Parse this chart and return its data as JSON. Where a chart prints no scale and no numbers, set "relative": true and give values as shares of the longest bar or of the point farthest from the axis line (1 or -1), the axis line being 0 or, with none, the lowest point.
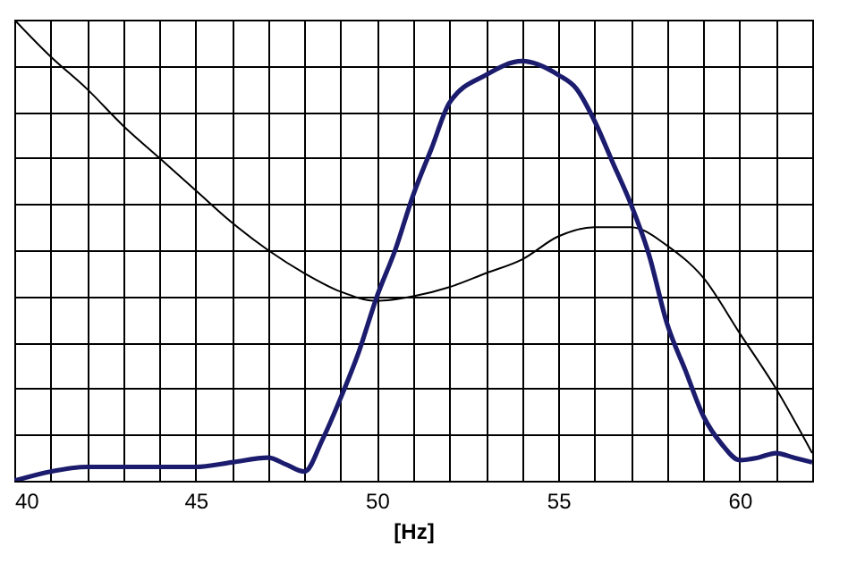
{
  "chart_data": {
    "type": "line",
    "xlabel": "[Hz]",
    "relative": true,
    "grid": true,
    "tick_labels": "x",
    "xlim": [
      40,
      62
    ],
    "xticks": [
      40,
      {
        "value": 41,
        "label": null
      },
      {
        "value": 42,
        "label": null
      },
      {
        "value": 43,
        "label": null
      },
      {
        "value": 44,
        "label": null
      },
      45,
      {
        "value": 46,
        "label": null
      },
      {
        "value": 47,
        "label": null
      },
      {
        "value": 48,
        "label": null
      },
      {
        "value": 49,
        "label": null
      },
      50,
      {
        "value": 51,
        "label": null
      },
      {
        "value": 52,
        "label": null
      },
      {
        "value": 53,
        "label": null
      },
      {
        "value": 54,
        "label": null
      },
      55,
      {
        "value": 56,
        "label": null
      },
      {
        "value": 57,
        "label": null
      },
      {
        "value": 58,
        "label": null
      },
      {
        "value": 59,
        "label": null
      },
      60,
      {
        "value": 61,
        "label": null
      },
      {
        "value": 62,
        "label": null
      }
    ],
    "series": [
      {
        "color": "#000000",
        "x": [
          40,
          41,
          42,
          43,
          44,
          45,
          46,
          47,
          48,
          49,
          50,
          51,
          52,
          53,
          54,
          55,
          56,
          57,
          58,
          59,
          60,
          61,
          62
        ],
        "values": [
          1.0,
          0.92,
          0.85,
          0.77,
          0.7,
          0.63,
          0.56,
          0.5,
          0.45,
          0.41,
          0.39,
          0.4,
          0.42,
          0.45,
          0.48,
          0.53,
          0.55,
          0.55,
          0.51,
          0.44,
          0.32,
          0.2,
          0.06
        ]
      },
      {
        "color": "#1c1c6e",
        "x": [
          40,
          41,
          42,
          43,
          44,
          45,
          46,
          47,
          47.5,
          48,
          48.5,
          49,
          49.5,
          50,
          50.5,
          51,
          51.5,
          52,
          53,
          54,
          55,
          55.5,
          56,
          56.5,
          57,
          57.5,
          58,
          58.5,
          59,
          59.5,
          60,
          60.5,
          61,
          61.5,
          62
        ],
        "values": [
          0.0,
          0.02,
          0.03,
          0.03,
          0.03,
          0.03,
          0.04,
          0.05,
          0.035,
          0.02,
          0.09,
          0.18,
          0.28,
          0.4,
          0.5,
          0.62,
          0.72,
          0.82,
          0.88,
          0.91,
          0.88,
          0.85,
          0.78,
          0.69,
          0.6,
          0.49,
          0.34,
          0.24,
          0.14,
          0.08,
          0.045,
          0.05,
          0.06,
          0.05,
          0.04
        ]
      }
    ]
  }
}
